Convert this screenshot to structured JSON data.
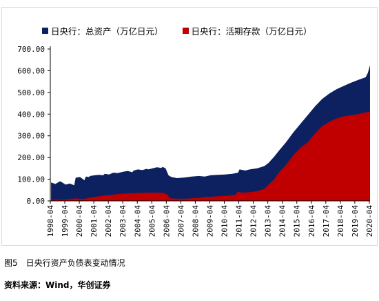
{
  "caption": "图5　日央行资产负债表变动情况",
  "source": "资料来源：Wind，华创证券",
  "chart_data": {
    "type": "area",
    "title": "",
    "xlabel": "",
    "ylabel": "",
    "ylim": [
      0,
      700
    ],
    "yticks": [
      "0.00",
      "100.00",
      "200.00",
      "300.00",
      "400.00",
      "500.00",
      "600.00",
      "700.00"
    ],
    "xticks": [
      "1998-04",
      "1999-04",
      "2000-04",
      "2001-04",
      "2002-04",
      "2003-04",
      "2004-04",
      "2005-04",
      "2006-04",
      "2007-04",
      "2008-04",
      "2009-04",
      "2010-04",
      "2011-04",
      "2012-04",
      "2013-04",
      "2014-04",
      "2015-04",
      "2016-04",
      "2017-04",
      "2018-04",
      "2019-04",
      "2020-04"
    ],
    "grid": false,
    "legend_position": "top",
    "series": [
      {
        "name": "日央行：总资产（万亿日元）",
        "color": "#0d2160",
        "x": [
          1998.3,
          1998.6,
          1998.9,
          1999.0,
          1999.3,
          1999.6,
          1999.9,
          2000.0,
          2000.3,
          2000.6,
          2000.7,
          2000.9,
          2001.0,
          2001.3,
          2001.6,
          2001.9,
          2002.0,
          2002.3,
          2002.6,
          2002.9,
          2003.0,
          2003.3,
          2003.6,
          2003.9,
          2004.0,
          2004.3,
          2004.6,
          2004.9,
          2005.0,
          2005.3,
          2005.6,
          2005.9,
          2006.0,
          2006.2,
          2006.4,
          2006.6,
          2007.0,
          2007.5,
          2008.0,
          2008.5,
          2008.9,
          2009.3,
          2009.8,
          2010.3,
          2010.8,
          2011.2,
          2011.3,
          2011.7,
          2012.0,
          2012.5,
          2013.0,
          2013.3,
          2013.7,
          2014.0,
          2014.5,
          2015.0,
          2015.5,
          2016.0,
          2016.5,
          2017.0,
          2017.5,
          2018.0,
          2018.5,
          2019.0,
          2019.5,
          2020.0,
          2020.15,
          2020.3
        ],
        "values": [
          85,
          78,
          90,
          88,
          75,
          80,
          72,
          107,
          110,
          95,
          112,
          110,
          115,
          118,
          120,
          118,
          125,
          122,
          130,
          128,
          130,
          135,
          138,
          132,
          140,
          145,
          142,
          148,
          145,
          150,
          155,
          152,
          157,
          150,
          118,
          110,
          105,
          108,
          112,
          115,
          112,
          118,
          120,
          122,
          125,
          130,
          145,
          140,
          145,
          150,
          160,
          175,
          205,
          230,
          270,
          315,
          355,
          395,
          435,
          470,
          495,
          515,
          530,
          545,
          558,
          570,
          590,
          625
        ]
      },
      {
        "name": "日央行：活期存款（万亿日元）",
        "color": "#c00000",
        "x": [
          1998.3,
          1999.0,
          1999.5,
          2000.0,
          2000.5,
          2001.0,
          2001.5,
          2002.0,
          2002.5,
          2003.0,
          2003.5,
          2004.0,
          2004.5,
          2005.0,
          2005.5,
          2006.0,
          2006.3,
          2006.5,
          2007.0,
          2007.5,
          2008.0,
          2008.5,
          2009.0,
          2009.5,
          2010.0,
          2010.5,
          2011.0,
          2011.2,
          2011.5,
          2012.0,
          2012.5,
          2013.0,
          2013.3,
          2013.7,
          2014.0,
          2014.5,
          2015.0,
          2015.5,
          2016.0,
          2016.5,
          2017.0,
          2017.5,
          2018.0,
          2018.5,
          2019.0,
          2019.5,
          2020.0,
          2020.3
        ],
        "values": [
          5,
          6,
          7,
          12,
          8,
          15,
          20,
          25,
          28,
          32,
          34,
          36,
          37,
          38,
          38,
          38,
          30,
          12,
          10,
          10,
          12,
          14,
          18,
          20,
          22,
          24,
          28,
          42,
          38,
          40,
          45,
          55,
          75,
          100,
          130,
          165,
          210,
          245,
          270,
          310,
          345,
          365,
          380,
          390,
          395,
          400,
          408,
          412
        ]
      }
    ]
  }
}
